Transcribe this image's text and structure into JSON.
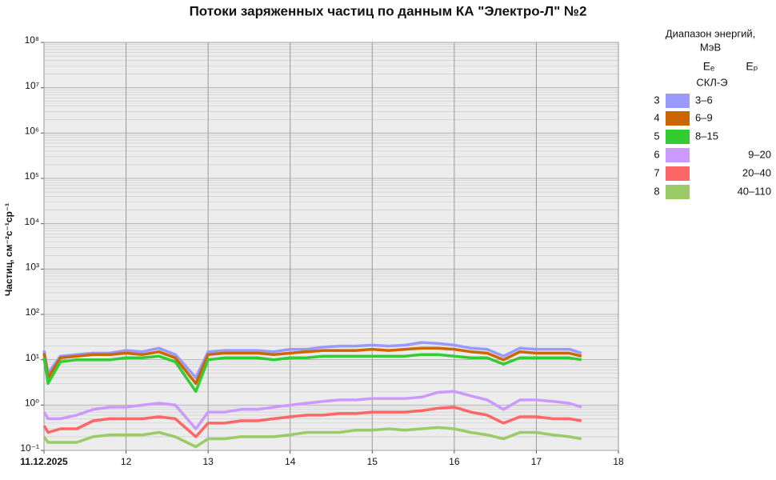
{
  "chart_data": {
    "type": "line",
    "title": "Потоки заряженных частиц по данным КА \"Электро-Л\" №2",
    "y_label": "Частиц, см⁻²с⁻¹ср⁻¹",
    "log_y": true,
    "grid": true,
    "minor_grid": true,
    "legend": {
      "title": [
        "Диапазон энергий,",
        "МэВ"
      ],
      "columns": [
        "Eₑ",
        "Eₚ"
      ],
      "subtitle": "СКЛ-Э",
      "corner": "right"
    },
    "xlim": [
      11,
      18
    ],
    "xticks": [
      {
        "value": 11,
        "label": "11.12.2025"
      },
      12,
      13,
      14,
      15,
      16,
      17,
      18
    ],
    "ylim": [
      0.1,
      100000000
    ],
    "yticks": [
      {
        "value": 0.1,
        "label": "10⁻¹"
      },
      {
        "value": 1,
        "label": "10⁰"
      },
      {
        "value": 10,
        "label": "10¹"
      },
      {
        "value": 100,
        "label": "10²"
      },
      {
        "value": 1000,
        "label": "10³"
      },
      {
        "value": 10000,
        "label": "10⁴"
      },
      {
        "value": 100000,
        "label": "10⁵"
      },
      {
        "value": 1000000,
        "label": "10⁶"
      },
      {
        "value": 10000000,
        "label": "10⁷"
      },
      {
        "value": 100000000,
        "label": "10⁸"
      }
    ],
    "x": [
      11.0,
      11.05,
      11.2,
      11.4,
      11.6,
      11.8,
      12.0,
      12.2,
      12.4,
      12.6,
      12.85,
      13.0,
      13.2,
      13.4,
      13.6,
      13.8,
      14.0,
      14.2,
      14.4,
      14.6,
      14.8,
      15.0,
      15.2,
      15.4,
      15.6,
      15.8,
      16.0,
      16.2,
      16.4,
      16.6,
      16.8,
      17.0,
      17.2,
      17.4,
      17.55
    ],
    "series": [
      {
        "channel": "3",
        "name": "3–6",
        "column": 0,
        "color": "#9999ff",
        "values": [
          16,
          5,
          12,
          13,
          14,
          14,
          16,
          15,
          18,
          13,
          4,
          15,
          16,
          16,
          16,
          15,
          17,
          17,
          19,
          20,
          20,
          21,
          20,
          21,
          24,
          23,
          21,
          18,
          17,
          12,
          18,
          17,
          17,
          17,
          14
        ]
      },
      {
        "channel": "4",
        "name": "6–9",
        "column": 0,
        "color": "#cc6600",
        "values": [
          14,
          4,
          11,
          12,
          13,
          13,
          14,
          13,
          15,
          11,
          3,
          13,
          14,
          14,
          14,
          13,
          14,
          15,
          16,
          16,
          16,
          17,
          16,
          17,
          18,
          18,
          17,
          15,
          14,
          10,
          15,
          14,
          14,
          14,
          12
        ]
      },
      {
        "channel": "5",
        "name": "8–15",
        "column": 0,
        "color": "#33cc33",
        "values": [
          11,
          3,
          9,
          10,
          10,
          10,
          11,
          11,
          12,
          9,
          2,
          10,
          11,
          11,
          11,
          10,
          11,
          11,
          12,
          12,
          12,
          12,
          12,
          12,
          13,
          13,
          12,
          11,
          11,
          8,
          11,
          11,
          11,
          11,
          10
        ]
      },
      {
        "channel": "6",
        "name": "9–20",
        "column": 1,
        "color": "#cc99ff",
        "values": [
          0.7,
          0.5,
          0.5,
          0.6,
          0.8,
          0.9,
          0.9,
          1.0,
          1.1,
          1.0,
          0.3,
          0.7,
          0.7,
          0.8,
          0.8,
          0.9,
          1.0,
          1.1,
          1.2,
          1.3,
          1.3,
          1.4,
          1.4,
          1.4,
          1.5,
          1.9,
          2.0,
          1.6,
          1.3,
          0.8,
          1.3,
          1.3,
          1.2,
          1.1,
          0.9
        ]
      },
      {
        "channel": "7",
        "name": "20–40",
        "column": 1,
        "color": "#ff6666",
        "values": [
          0.35,
          0.25,
          0.3,
          0.3,
          0.45,
          0.5,
          0.5,
          0.5,
          0.55,
          0.5,
          0.2,
          0.4,
          0.4,
          0.45,
          0.45,
          0.5,
          0.55,
          0.6,
          0.6,
          0.65,
          0.65,
          0.7,
          0.7,
          0.7,
          0.75,
          0.85,
          0.9,
          0.7,
          0.6,
          0.4,
          0.55,
          0.55,
          0.5,
          0.5,
          0.45
        ]
      },
      {
        "channel": "8",
        "name": "40–110",
        "column": 1,
        "color": "#99cc66",
        "values": [
          0.2,
          0.15,
          0.15,
          0.15,
          0.2,
          0.22,
          0.22,
          0.22,
          0.25,
          0.2,
          0.12,
          0.18,
          0.18,
          0.2,
          0.2,
          0.2,
          0.22,
          0.25,
          0.25,
          0.25,
          0.28,
          0.28,
          0.3,
          0.28,
          0.3,
          0.32,
          0.3,
          0.25,
          0.22,
          0.18,
          0.25,
          0.25,
          0.22,
          0.2,
          0.18
        ]
      }
    ]
  }
}
